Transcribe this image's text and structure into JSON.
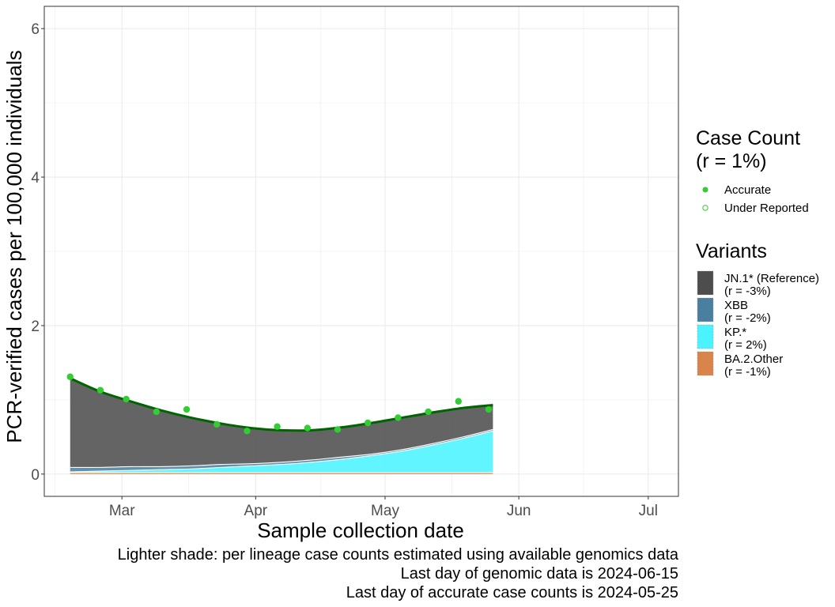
{
  "chart_data": {
    "type": "area",
    "title": "",
    "xlabel": "Sample collection date",
    "ylabel": "PCR-verified cases per 100,000 individuals",
    "x_range": [
      "2024-02-12",
      "2024-07-08"
    ],
    "ylim": [
      -0.3,
      6.3
    ],
    "y_ticks": [
      0,
      2,
      4,
      6
    ],
    "x_ticks": [
      {
        "date": "2024-03-01",
        "label": "Mar"
      },
      {
        "date": "2024-04-01",
        "label": "Apr"
      },
      {
        "date": "2024-05-01",
        "label": "May"
      },
      {
        "date": "2024-06-01",
        "label": "Jun"
      },
      {
        "date": "2024-07-01",
        "label": "Jul"
      }
    ],
    "grid": true,
    "x": [
      "2024-02-18",
      "2024-02-25",
      "2024-03-03",
      "2024-03-10",
      "2024-03-17",
      "2024-03-24",
      "2024-03-31",
      "2024-04-07",
      "2024-04-14",
      "2024-04-21",
      "2024-04-28",
      "2024-05-05",
      "2024-05-12",
      "2024-05-19",
      "2024-05-26"
    ],
    "series": [
      {
        "name": "BA.2.Other",
        "sublabel": "(r = -1%)",
        "color": "#d9844a",
        "values": [
          0.02,
          0.02,
          0.02,
          0.02,
          0.02,
          0.02,
          0.02,
          0.02,
          0.02,
          0.02,
          0.02,
          0.02,
          0.02,
          0.02,
          0.02
        ]
      },
      {
        "name": "KP.*",
        "sublabel": "(r = 2%)",
        "color": "#4af3ff",
        "values": [
          0.01,
          0.02,
          0.03,
          0.04,
          0.05,
          0.07,
          0.09,
          0.11,
          0.14,
          0.18,
          0.23,
          0.29,
          0.37,
          0.46,
          0.56
        ]
      },
      {
        "name": "XBB",
        "sublabel": "(r = -2%)",
        "color": "#4a7fa0",
        "values": [
          0.06,
          0.05,
          0.05,
          0.04,
          0.04,
          0.04,
          0.03,
          0.03,
          0.03,
          0.03,
          0.02,
          0.02,
          0.02,
          0.02,
          0.02
        ]
      },
      {
        "name": "JN.1* (Reference)",
        "sublabel": "(r = -3%)",
        "color": "#4d4d4d",
        "values": [
          1.2,
          1.02,
          0.88,
          0.76,
          0.65,
          0.55,
          0.48,
          0.43,
          0.4,
          0.4,
          0.42,
          0.43,
          0.42,
          0.39,
          0.33
        ]
      }
    ],
    "total_fit": [
      1.29,
      1.11,
      0.98,
      0.86,
      0.76,
      0.68,
      0.62,
      0.59,
      0.59,
      0.63,
      0.69,
      0.76,
      0.83,
      0.89,
      0.93
    ],
    "case_counts": [
      {
        "date": "2024-02-18",
        "value": 1.31
      },
      {
        "date": "2024-02-25",
        "value": 1.13
      },
      {
        "date": "2024-03-02",
        "value": 1.01
      },
      {
        "date": "2024-03-09",
        "value": 0.84
      },
      {
        "date": "2024-03-16",
        "value": 0.87
      },
      {
        "date": "2024-03-23",
        "value": 0.67
      },
      {
        "date": "2024-03-30",
        "value": 0.58
      },
      {
        "date": "2024-04-06",
        "value": 0.64
      },
      {
        "date": "2024-04-13",
        "value": 0.62
      },
      {
        "date": "2024-04-20",
        "value": 0.6
      },
      {
        "date": "2024-04-27",
        "value": 0.69
      },
      {
        "date": "2024-05-04",
        "value": 0.76
      },
      {
        "date": "2024-05-11",
        "value": 0.84
      },
      {
        "date": "2024-05-18",
        "value": 0.98
      },
      {
        "date": "2024-05-25",
        "value": 0.87
      }
    ],
    "colors": {
      "points": "#33cc33",
      "fit_line": "#006400",
      "panel_border": "#333333",
      "grid": "#ebebeb"
    }
  },
  "legend": {
    "case_count_title_1": "Case Count",
    "case_count_title_2": "(r = 1%)",
    "accurate_label": "Accurate",
    "under_reported_label": "Under Reported",
    "variants_title": "Variants",
    "variants": [
      {
        "name": "JN.1* (Reference)",
        "sublabel": "(r = -3%)",
        "color": "#4d4d4d"
      },
      {
        "name": "XBB",
        "sublabel": "(r = -2%)",
        "color": "#4a7fa0"
      },
      {
        "name": "KP.*",
        "sublabel": "(r = 2%)",
        "color": "#4af3ff"
      },
      {
        "name": "BA.2.Other",
        "sublabel": "(r = -1%)",
        "color": "#d9844a"
      }
    ]
  },
  "caption": {
    "line1": "Lighter shade: per lineage case counts estimated using available genomics data",
    "line2": "Last day of genomic data is 2024-06-15",
    "line3": "Last day of accurate case counts is 2024-05-25"
  }
}
